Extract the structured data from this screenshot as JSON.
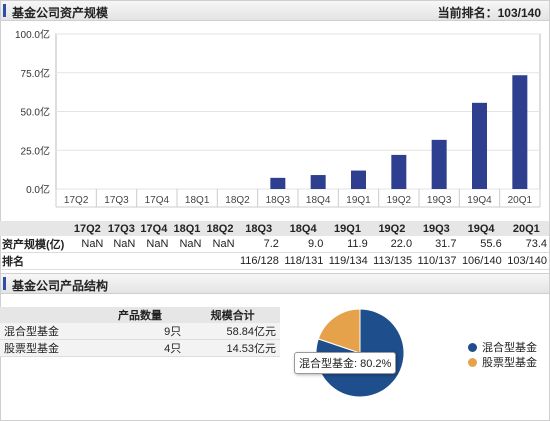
{
  "asset_panel": {
    "title": "基金公司资产规模",
    "rank_label": "当前排名：",
    "rank_value": "103/140"
  },
  "chart_data": {
    "type": "bar",
    "categories": [
      "17Q2",
      "17Q3",
      "17Q4",
      "18Q1",
      "18Q2",
      "18Q3",
      "18Q4",
      "19Q1",
      "19Q2",
      "19Q3",
      "19Q4",
      "20Q1"
    ],
    "values": [
      null,
      null,
      null,
      null,
      null,
      7.2,
      9.0,
      11.9,
      22.0,
      31.7,
      55.6,
      73.4
    ],
    "y_ticks": [
      "0.0亿",
      "25.0亿",
      "50.0亿",
      "75.0亿",
      "100.0亿"
    ],
    "ylim": [
      0,
      100
    ],
    "color": "#2e3f8f",
    "grid": true
  },
  "table": {
    "headers": [
      "17Q2",
      "17Q3",
      "17Q4",
      "18Q1",
      "18Q2",
      "18Q3",
      "18Q4",
      "19Q1",
      "19Q2",
      "19Q3",
      "19Q4",
      "20Q1"
    ],
    "rows": [
      {
        "label": "资产规模(亿)",
        "cells": [
          "NaN",
          "NaN",
          "NaN",
          "NaN",
          "NaN",
          "7.2",
          "9.0",
          "11.9",
          "22.0",
          "31.7",
          "55.6",
          "73.4"
        ]
      },
      {
        "label": "排名",
        "cells": [
          "",
          "",
          "",
          "",
          "",
          "116/128",
          "118/131",
          "119/134",
          "113/135",
          "110/137",
          "106/140",
          "103/140"
        ]
      }
    ]
  },
  "structure_panel": {
    "title": "基金公司产品结构",
    "headers": [
      "",
      "产品数量",
      "规模合计"
    ],
    "rows": [
      {
        "name": "混合型基金",
        "count": "9只",
        "total": "58.84亿元"
      },
      {
        "name": "股票型基金",
        "count": "4只",
        "total": "14.53亿元"
      }
    ]
  },
  "pie": {
    "slices": [
      {
        "name": "混合型基金",
        "value": 80.2,
        "color": "#1f4e8c"
      },
      {
        "name": "股票型基金",
        "value": 19.8,
        "color": "#e6a24a"
      }
    ],
    "tooltip": "混合型基金: 80.2%"
  }
}
